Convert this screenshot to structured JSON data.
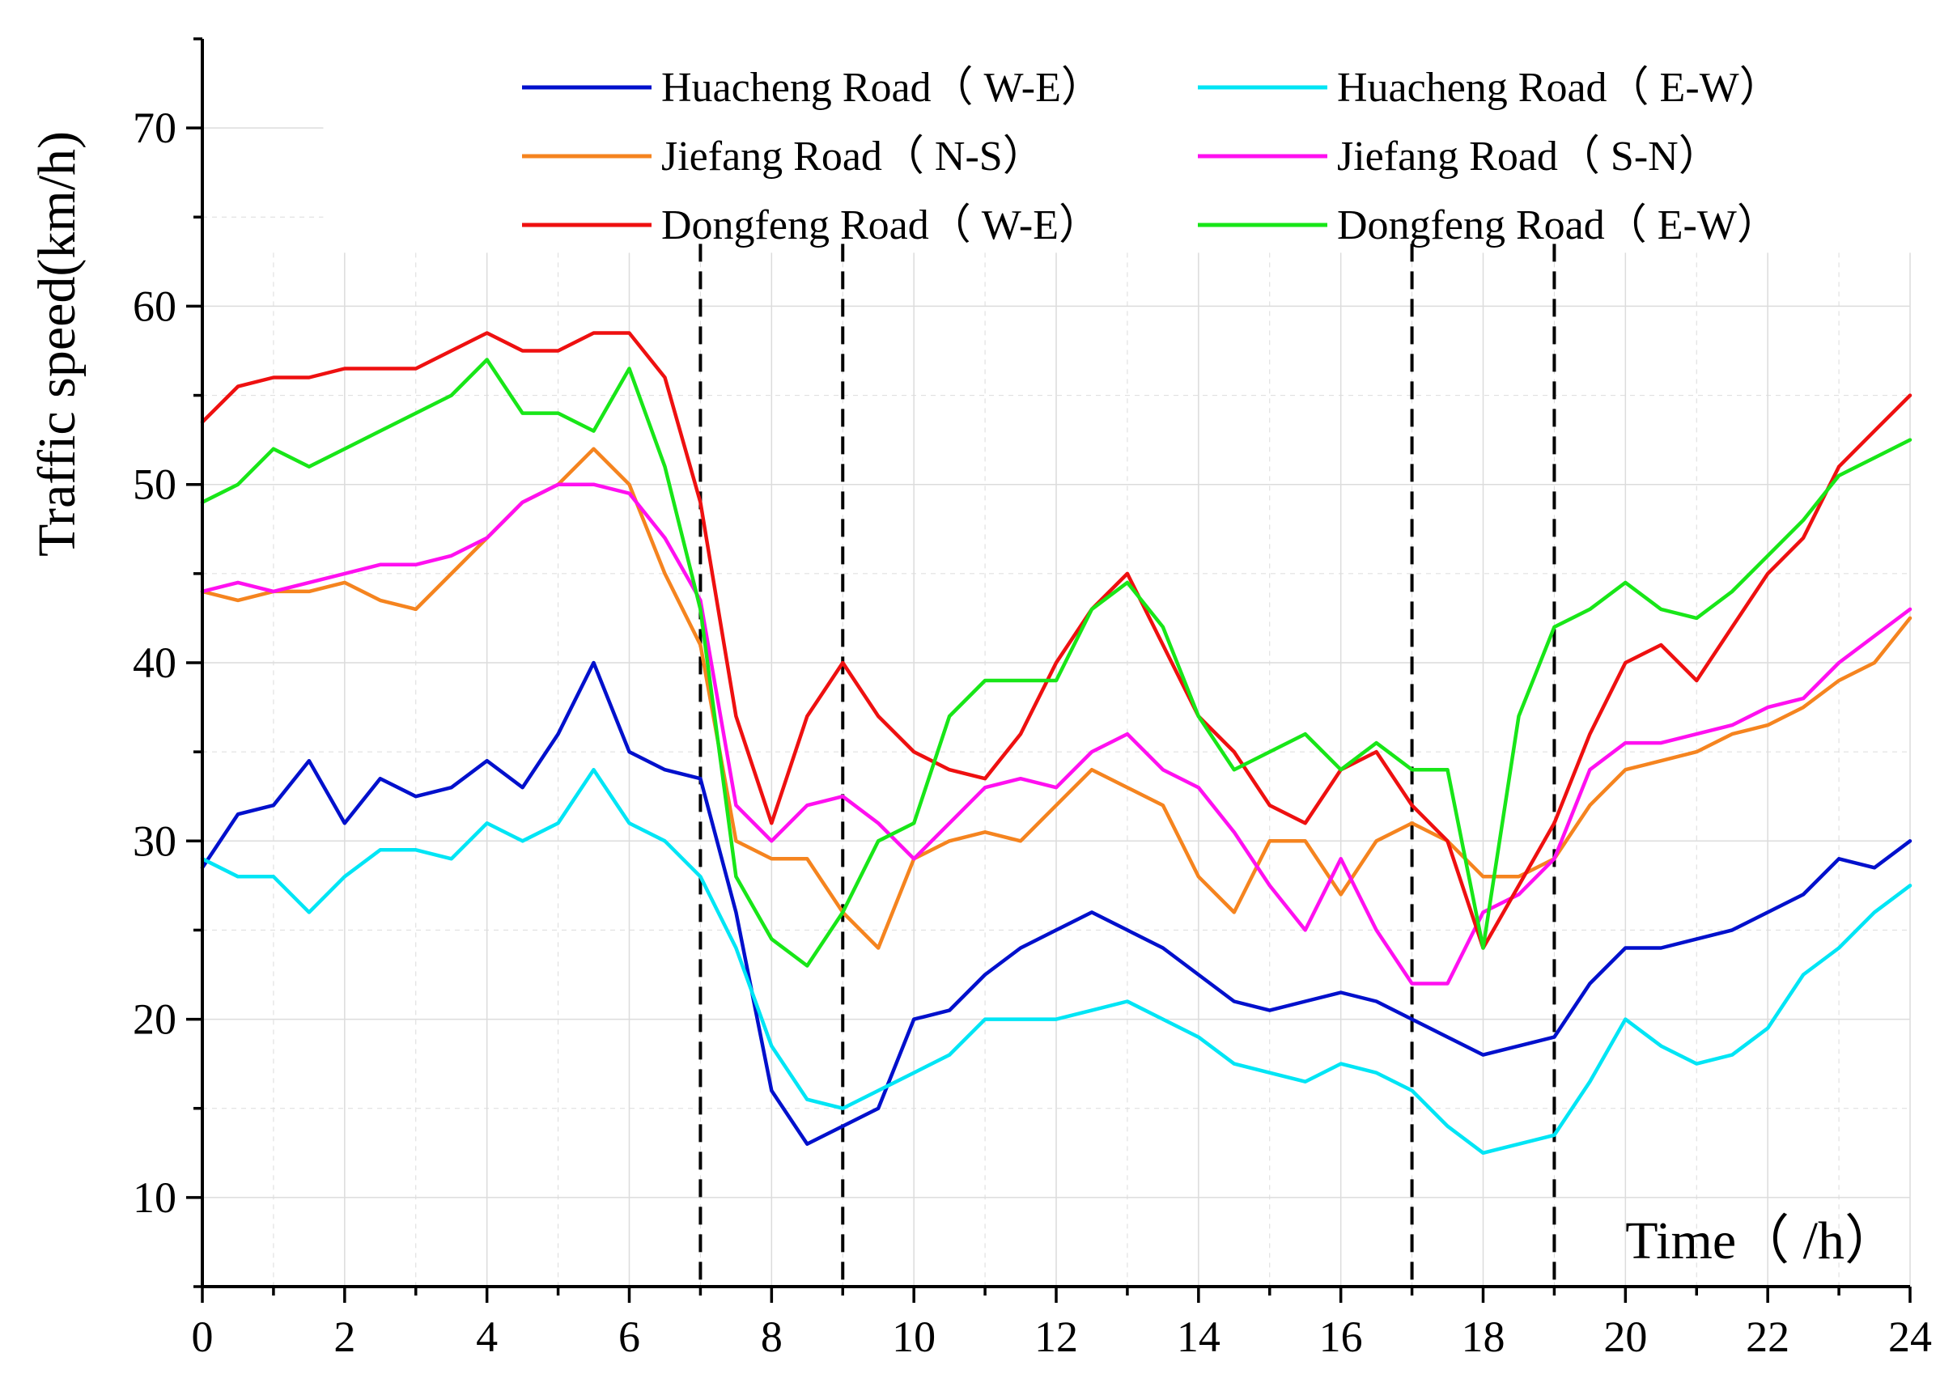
{
  "chart_data": {
    "type": "line",
    "title": "",
    "xlabel": "Time（ /h）",
    "ylabel": "Traffic speed(km/h)",
    "xlim": [
      0,
      24
    ],
    "ylim": [
      5,
      75
    ],
    "x_ticks": [
      "0",
      "2",
      "4",
      "6",
      "8",
      "10",
      "12",
      "14",
      "16",
      "18",
      "20",
      "22",
      "24"
    ],
    "y_ticks": [
      "10",
      "20",
      "30",
      "40",
      "50",
      "60",
      "70"
    ],
    "grid": true,
    "legend_position": "top",
    "vertical_dashed_lines_at": [
      7,
      9,
      17,
      19
    ],
    "series": [
      {
        "name": "Huacheng Road（ W-E）",
        "color": "#0010cc",
        "x": [
          0,
          0.5,
          1,
          1.5,
          2,
          2.5,
          3,
          3.5,
          4,
          4.5,
          5,
          5.5,
          6,
          6.5,
          7,
          7.5,
          8,
          8.5,
          9,
          9.5,
          10,
          10.5,
          11,
          11.5,
          12,
          12.5,
          13,
          13.5,
          14,
          14.5,
          15,
          15.5,
          16,
          16.5,
          17,
          17.5,
          18,
          18.5,
          19,
          19.5,
          20,
          20.5,
          21,
          21.5,
          22,
          22.5,
          23,
          23.5,
          24
        ],
        "y": [
          28.5,
          31.5,
          32,
          34.5,
          31,
          33.5,
          32.5,
          33,
          34.5,
          33,
          36,
          40,
          35,
          34,
          33.5,
          26,
          16,
          13,
          14,
          15,
          20,
          20.5,
          22.5,
          24,
          25,
          26,
          25,
          24,
          22.5,
          21,
          20.5,
          21,
          21.5,
          21,
          20,
          19,
          18,
          18.5,
          19,
          22,
          24,
          24,
          24.5,
          25,
          26,
          27,
          29,
          28.5,
          30
        ]
      },
      {
        "name": "Huacheng Road（ E-W）",
        "color": "#00e5f5",
        "x": [
          0,
          0.5,
          1,
          1.5,
          2,
          2.5,
          3,
          3.5,
          4,
          4.5,
          5,
          5.5,
          6,
          6.5,
          7,
          7.5,
          8,
          8.5,
          9,
          9.5,
          10,
          10.5,
          11,
          11.5,
          12,
          12.5,
          13,
          13.5,
          14,
          14.5,
          15,
          15.5,
          16,
          16.5,
          17,
          17.5,
          18,
          18.5,
          19,
          19.5,
          20,
          20.5,
          21,
          21.5,
          22,
          22.5,
          23,
          23.5,
          24
        ],
        "y": [
          29,
          28,
          28,
          26,
          28,
          29.5,
          29.5,
          29,
          31,
          30,
          31,
          34,
          31,
          30,
          28,
          24,
          18.5,
          15.5,
          15,
          16,
          17,
          18,
          20,
          20,
          20,
          20.5,
          21,
          20,
          19,
          17.5,
          17,
          16.5,
          17.5,
          17,
          16,
          14,
          12.5,
          13,
          13.5,
          16.5,
          20,
          18.5,
          17.5,
          18,
          19.5,
          22.5,
          24,
          26,
          27.5
        ]
      },
      {
        "name": "Jiefang Road（ N-S）",
        "color": "#f5841f",
        "x": [
          0,
          0.5,
          1,
          1.5,
          2,
          2.5,
          3,
          3.5,
          4,
          4.5,
          5,
          5.5,
          6,
          6.5,
          7,
          7.5,
          8,
          8.5,
          9,
          9.5,
          10,
          10.5,
          11,
          11.5,
          12,
          12.5,
          13,
          13.5,
          14,
          14.5,
          15,
          15.5,
          16,
          16.5,
          17,
          17.5,
          18,
          18.5,
          19,
          19.5,
          20,
          20.5,
          21,
          21.5,
          22,
          22.5,
          23,
          23.5,
          24
        ],
        "y": [
          44,
          43.5,
          44,
          44,
          44.5,
          43.5,
          43,
          45,
          47,
          49,
          50,
          52,
          50,
          45,
          41,
          30,
          29,
          29,
          26,
          24,
          29,
          30,
          30.5,
          30,
          32,
          34,
          33,
          32,
          28,
          26,
          30,
          30,
          27,
          30,
          31,
          30,
          28,
          28,
          29,
          32,
          34,
          34.5,
          35,
          36,
          36.5,
          37.5,
          39,
          40,
          42.5
        ]
      },
      {
        "name": "Jiefang Road（ S-N）",
        "color": "#ff10f0",
        "x": [
          0,
          0.5,
          1,
          1.5,
          2,
          2.5,
          3,
          3.5,
          4,
          4.5,
          5,
          5.5,
          6,
          6.5,
          7,
          7.5,
          8,
          8.5,
          9,
          9.5,
          10,
          10.5,
          11,
          11.5,
          12,
          12.5,
          13,
          13.5,
          14,
          14.5,
          15,
          15.5,
          16,
          16.5,
          17,
          17.5,
          18,
          18.5,
          19,
          19.5,
          20,
          20.5,
          21,
          21.5,
          22,
          22.5,
          23,
          23.5,
          24
        ],
        "y": [
          44,
          44.5,
          44,
          44.5,
          45,
          45.5,
          45.5,
          46,
          47,
          49,
          50,
          50,
          49.5,
          47,
          43.5,
          32,
          30,
          32,
          32.5,
          31,
          29,
          31,
          33,
          33.5,
          33,
          35,
          36,
          34,
          33,
          30.5,
          27.5,
          25,
          29,
          25,
          22,
          22,
          26,
          27,
          29,
          34,
          35.5,
          35.5,
          36,
          36.5,
          37.5,
          38,
          40,
          41.5,
          43
        ]
      },
      {
        "name": "Dongfeng Road（ W-E）",
        "color": "#ee1010",
        "x": [
          0,
          0.5,
          1,
          1.5,
          2,
          2.5,
          3,
          3.5,
          4,
          4.5,
          5,
          5.5,
          6,
          6.5,
          7,
          7.5,
          8,
          8.5,
          9,
          9.5,
          10,
          10.5,
          11,
          11.5,
          12,
          12.5,
          13,
          13.5,
          14,
          14.5,
          15,
          15.5,
          16,
          16.5,
          17,
          17.5,
          18,
          18.5,
          19,
          19.5,
          20,
          20.5,
          21,
          21.5,
          22,
          22.5,
          23,
          23.5,
          24
        ],
        "y": [
          53.5,
          55.5,
          56,
          56,
          56.5,
          56.5,
          56.5,
          57.5,
          58.5,
          57.5,
          57.5,
          58.5,
          58.5,
          56,
          49,
          37,
          31,
          37,
          40,
          37,
          35,
          34,
          33.5,
          36,
          40,
          43,
          45,
          41,
          37,
          35,
          32,
          31,
          34,
          35,
          32,
          30,
          24,
          27.5,
          31,
          36,
          40,
          41,
          39,
          42,
          45,
          47,
          51,
          53,
          55
        ]
      },
      {
        "name": "Dongfeng Road（ E-W）",
        "color": "#18e618",
        "x": [
          0,
          0.5,
          1,
          1.5,
          2,
          2.5,
          3,
          3.5,
          4,
          4.5,
          5,
          5.5,
          6,
          6.5,
          7,
          7.5,
          8,
          8.5,
          9,
          9.5,
          10,
          10.5,
          11,
          11.5,
          12,
          12.5,
          13,
          13.5,
          14,
          14.5,
          15,
          15.5,
          16,
          16.5,
          17,
          17.5,
          18,
          18.5,
          19,
          19.5,
          20,
          20.5,
          21,
          21.5,
          22,
          22.5,
          23,
          23.5,
          24
        ],
        "y": [
          49,
          50,
          52,
          51,
          52,
          53,
          54,
          55,
          57,
          54,
          54,
          53,
          56.5,
          51,
          43,
          28,
          24.5,
          23,
          26,
          30,
          31,
          37,
          39,
          39,
          39,
          43,
          44.5,
          42,
          37,
          34,
          35,
          36,
          34,
          35.5,
          34,
          34,
          24,
          37,
          42,
          43,
          44.5,
          43,
          42.5,
          44,
          46,
          48,
          50.5,
          51.5,
          52.5
        ]
      }
    ]
  }
}
